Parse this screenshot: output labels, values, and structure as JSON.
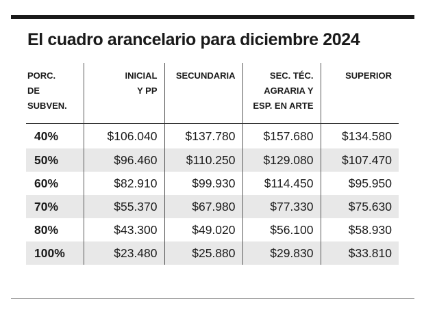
{
  "title": "El cuadro arancelario para diciembre 2024",
  "headers": {
    "col0": [
      "PORC.",
      "DE",
      "SUBVEN."
    ],
    "col1": [
      "INICIAL",
      "Y PP"
    ],
    "col2": [
      "SECUNDARIA"
    ],
    "col3": [
      "SEC. TÉC.",
      "AGRARIA Y",
      "ESP. EN ARTE"
    ],
    "col4": [
      "SUPERIOR"
    ]
  },
  "rows": [
    {
      "pct": "40%",
      "inicial": "$106.040",
      "secundaria": "$137.780",
      "sec_tec": "$157.680",
      "superior": "$134.580"
    },
    {
      "pct": "50%",
      "inicial": "$96.460",
      "secundaria": "$110.250",
      "sec_tec": "$129.080",
      "superior": "$107.470"
    },
    {
      "pct": "60%",
      "inicial": "$82.910",
      "secundaria": "$99.930",
      "sec_tec": "$114.450",
      "superior": "$95.950"
    },
    {
      "pct": "70%",
      "inicial": "$55.370",
      "secundaria": "$67.980",
      "sec_tec": "$77.330",
      "superior": "$75.630"
    },
    {
      "pct": "80%",
      "inicial": "$43.300",
      "secundaria": "$49.020",
      "sec_tec": "$56.100",
      "superior": "$58.930"
    },
    {
      "pct": "100%",
      "inicial": "$23.480",
      "secundaria": "$25.880",
      "sec_tec": "$29.830",
      "superior": "$33.810"
    }
  ]
}
